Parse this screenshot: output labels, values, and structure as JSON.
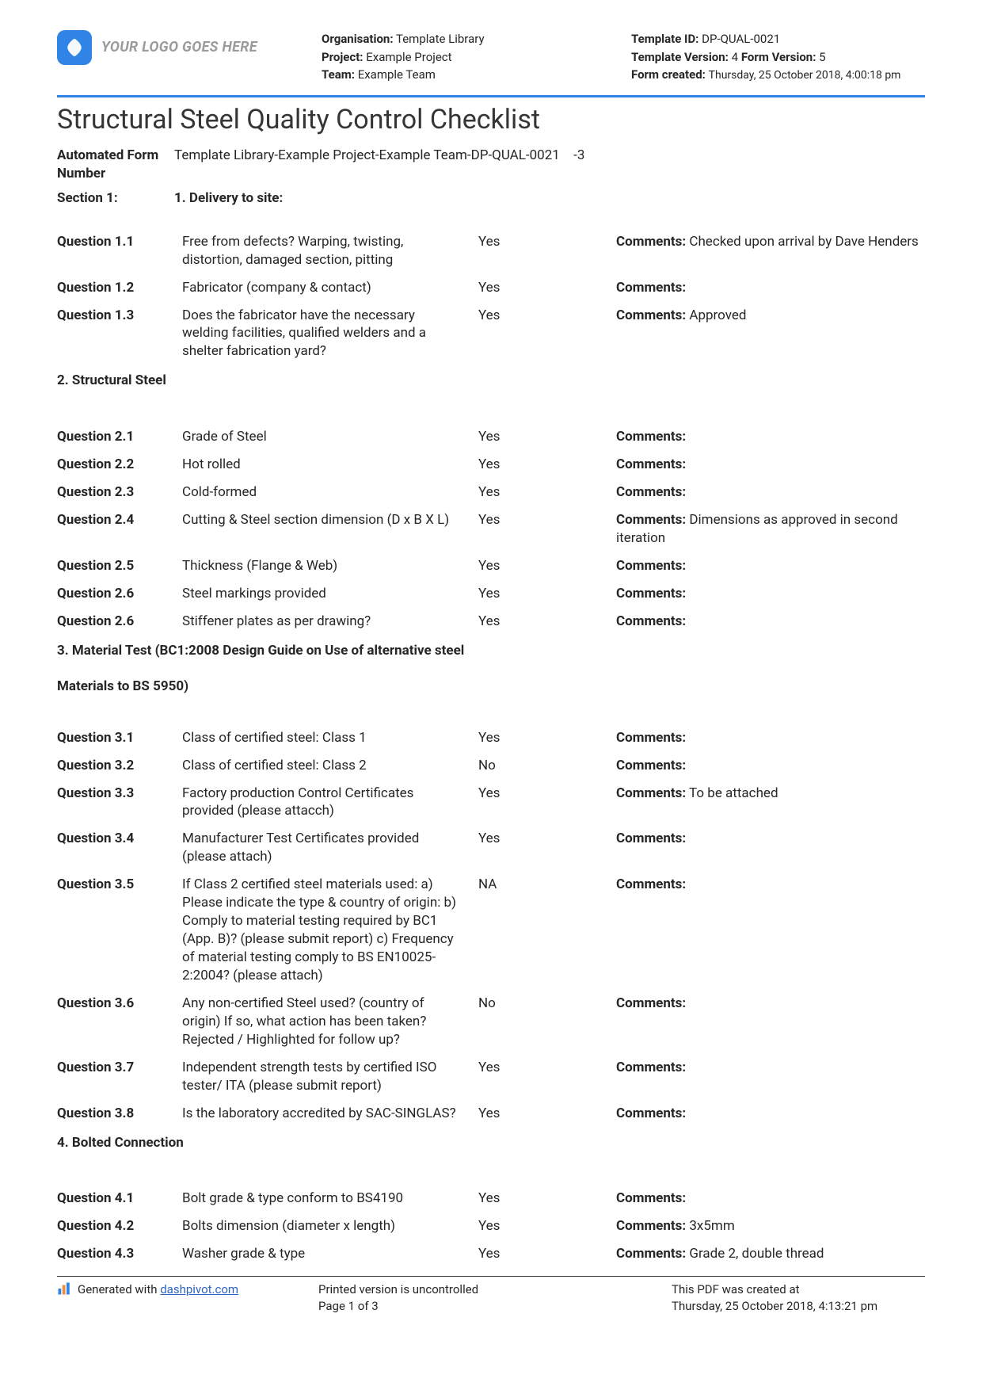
{
  "header": {
    "logo_placeholder": "YOUR LOGO GOES HERE",
    "org_label": "Organisation:",
    "org_value": "Template Library",
    "project_label": "Project:",
    "project_value": "Example Project",
    "team_label": "Team:",
    "team_value": "Example Team",
    "tmpl_id_label": "Template ID:",
    "tmpl_id": "DP-QUAL-0021",
    "tmpl_ver_label": "Template Version:",
    "tmpl_ver": "4",
    "form_ver_label": "Form Version:",
    "form_ver": "5",
    "form_created_label": "Form created:",
    "form_created": "Thursday, 25 October 2018, 4:00:18 pm"
  },
  "title": "Structural Steel Quality Control Checklist",
  "form_number_label": "Automated Form Number",
  "form_number_value": "Template Library-Example Project-Example Team-DP-QUAL-0021 -3",
  "section1_label": "Section 1:",
  "section1_value": "1. Delivery to site:",
  "q": {
    "1_1": {
      "label": "Question 1.1",
      "text": "Free from defects? Warping, twisting, distortion, damaged section, pitting",
      "ans": "Yes",
      "comm_label": "Comments:",
      "comm": " Checked upon arrival by Dave Henders"
    },
    "1_2": {
      "label": "Question 1.2",
      "text": "Fabricator (company & contact)",
      "ans": "Yes",
      "comm_label": "Comments:",
      "comm": ""
    },
    "1_3": {
      "label": "Question 1.3",
      "text": "Does the fabricator have the necessary welding facilities, qualified welders and a shelter fabrication yard?",
      "ans": "Yes",
      "comm_label": "Comments:",
      "comm": " Approved"
    },
    "2_1": {
      "label": "Question 2.1",
      "text": "Grade of Steel",
      "ans": "Yes",
      "comm_label": "Comments:",
      "comm": ""
    },
    "2_2": {
      "label": "Question 2.2",
      "text": "Hot rolled",
      "ans": "Yes",
      "comm_label": "Comments:",
      "comm": ""
    },
    "2_3": {
      "label": "Question 2.3",
      "text": "Cold-formed",
      "ans": "Yes",
      "comm_label": "Comments:",
      "comm": ""
    },
    "2_4": {
      "label": "Question 2.4",
      "text": "Cutting & Steel section dimension (D x B X L)",
      "ans": "Yes",
      "comm_label": "Comments:",
      "comm": " Dimensions as approved in second iteration"
    },
    "2_5": {
      "label": "Question 2.5",
      "text": "Thickness (Flange & Web)",
      "ans": "Yes",
      "comm_label": "Comments:",
      "comm": ""
    },
    "2_6a": {
      "label": "Question 2.6",
      "text": "Steel markings provided",
      "ans": "Yes",
      "comm_label": "Comments:",
      "comm": ""
    },
    "2_6b": {
      "label": "Question 2.6",
      "text": "Stiffener plates as per drawing?",
      "ans": "Yes",
      "comm_label": "Comments:",
      "comm": ""
    },
    "3_1": {
      "label": "Question 3.1",
      "text": "Class of certified steel: Class 1",
      "ans": "Yes",
      "comm_label": "Comments:",
      "comm": ""
    },
    "3_2": {
      "label": "Question 3.2",
      "text": "Class of certified steel: Class 2",
      "ans": "No",
      "comm_label": "Comments:",
      "comm": ""
    },
    "3_3": {
      "label": "Question 3.3",
      "text": "Factory production Control Certificates provided (please attacch)",
      "ans": "Yes",
      "comm_label": "Comments:",
      "comm": " To be attached"
    },
    "3_4": {
      "label": "Question 3.4",
      "text": "Manufacturer Test Certificates provided (please attach)",
      "ans": "Yes",
      "comm_label": "Comments:",
      "comm": ""
    },
    "3_5": {
      "label": "Question 3.5",
      "text": "If Class 2 certified steel materials used: a) Please indicate the type & country of origin: b) Comply to material testing required by BC1 (App. B)? (please submit report) c) Frequency of material testing comply to BS EN10025-2:2004? (please attach)",
      "ans": "NA",
      "comm_label": "Comments:",
      "comm": ""
    },
    "3_6": {
      "label": "Question 3.6",
      "text": "Any non-certified Steel used? (country of origin) If so, what action has been taken? Rejected / Highlighted for follow up?",
      "ans": "No",
      "comm_label": "Comments:",
      "comm": ""
    },
    "3_7": {
      "label": "Question 3.7",
      "text": "Independent strength tests by certified ISO tester/ ITA (please submit report)",
      "ans": "Yes",
      "comm_label": "Comments:",
      "comm": ""
    },
    "3_8": {
      "label": "Question 3.8",
      "text": "Is the laboratory accredited by SAC-SINGLAS?",
      "ans": "Yes",
      "comm_label": "Comments:",
      "comm": ""
    },
    "4_1": {
      "label": "Question 4.1",
      "text": "Bolt grade & type conform to BS4190",
      "ans": "Yes",
      "comm_label": "Comments:",
      "comm": ""
    },
    "4_2": {
      "label": "Question 4.2",
      "text": "Bolts dimension (diameter x length)",
      "ans": "Yes",
      "comm_label": "Comments:",
      "comm": " 3x5mm"
    },
    "4_3": {
      "label": "Question 4.3",
      "text": "Washer grade & type",
      "ans": "Yes",
      "comm_label": "Comments:",
      "comm": " Grade 2, double thread"
    }
  },
  "sec2": "2. Structural Steel",
  "sec3a": "3. Material Test (BC1:2008 Design Guide on Use of alternative steel",
  "sec3b": "Materials to BS 5950)",
  "sec4": "4. Bolted Connection",
  "footer": {
    "generated_prefix": "Generated with ",
    "generated_link": "dashpivot.com",
    "uncontrolled": "Printed version is uncontrolled",
    "page": "Page 1 of 3",
    "created_at_label": "This PDF was created at",
    "created_at": "Thursday, 25 October 2018, 4:13:21 pm"
  },
  "colors": {
    "accent": "#2f84e6"
  }
}
